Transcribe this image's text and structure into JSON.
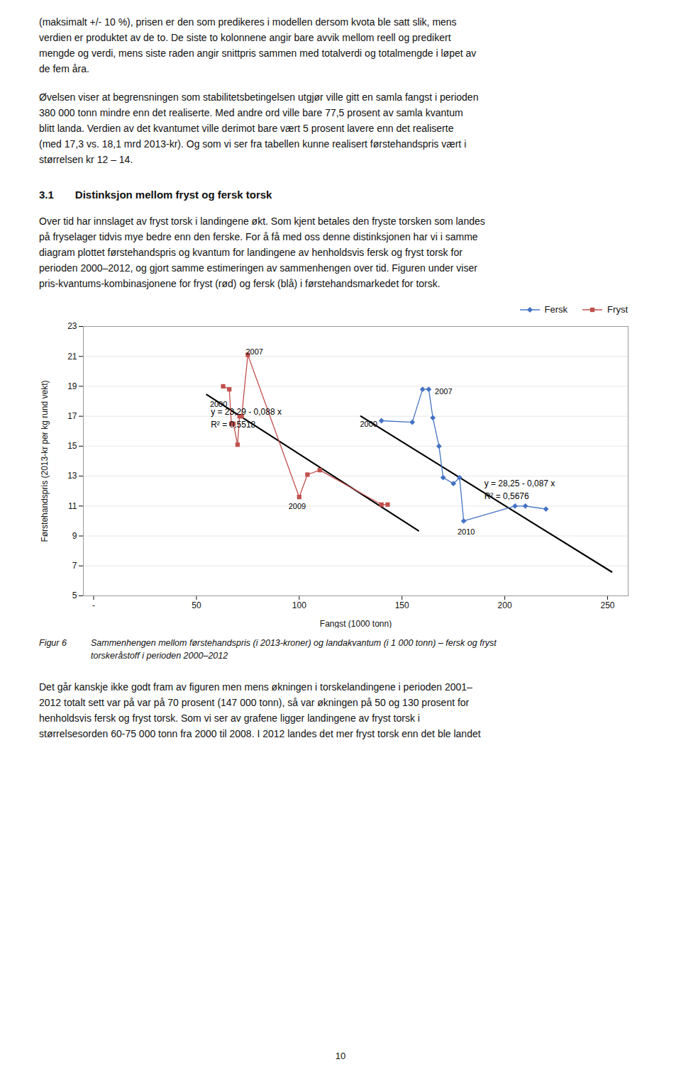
{
  "text_before": [
    [
      "(maksimalt +/- 10 %), prisen er den som predikeres i modellen dersom kvota ble satt slik, mens",
      "verdien er produktet av de to. De siste to kolonnene angir bare avvik mellom reell og predikert",
      "mengde og verdi, mens siste raden angir snittpris sammen med totalverdi og totalmengde i løpet av",
      "de fem åra."
    ],
    [
      "Øvelsen viser at begrensningen som stabilitetsbetingelsen utgjør ville gitt en samla fangst i perioden",
      "380 000 tonn mindre enn det realiserte. Med andre ord ville bare 77,5 prosent av samla kvantum",
      "blitt landa. Verdien av det kvantumet ville derimot bare vært 5 prosent lavere enn det realiserte",
      "(med 17,3 vs. 18,1 mrd 2013-kr). Og som vi ser fra tabellen kunne realisert førstehandspris vært i",
      "størrelsen kr 12 – 14."
    ]
  ],
  "section_number": "3.1",
  "section_title": "Distinksjon mellom fryst og fersk torsk",
  "text_section": [
    [
      "Over tid har innslaget av fryst torsk i landingene økt. Som kjent betales den fryste torsken som landes",
      "på fryselager tidvis mye bedre enn den ferske. For å få med oss denne distinksjonen har vi i samme",
      "diagram plottet førstehandspris og kvantum for landingene av henholdsvis fersk og fryst torsk for",
      "perioden 2000–2012, og gjort samme estimeringen av sammenhengen over tid. Figuren under viser",
      "pris-kvantums-kombinasjonene for fryst (rød) og fersk (blå) i førstehandsmarkedet for torsk."
    ]
  ],
  "caption_label": "Figur 6",
  "caption": [
    "Sammenhengen mellom førstehandspris (i 2013-kroner) og landakvantum (i 1 000 tonn) – fersk og fryst",
    "torskeråstoff i perioden 2000–2012"
  ],
  "text_after": [
    [
      "Det går kanskje ikke godt fram av figuren men mens økningen i torskelandingene i perioden 2001–",
      "2012 totalt sett var på var på 70 prosent (147 000 tonn), så var økningen på 50 og 130 prosent for",
      "henholdsvis fersk og fryst torsk. Som vi ser av grafene ligger landingene av fryst torsk i",
      "størrelsesorden 60-75 000 tonn fra 2000 til 2008. I 2012 landes det mer fryst torsk enn det ble landet"
    ]
  ],
  "page_number": "10",
  "chart_data": {
    "type": "line",
    "xlabel": "Fangst (1000 tonn)",
    "ylabel": "Førstehandspris (2013-kr per kg rund vekt)",
    "xlim": [
      -5,
      260
    ],
    "ylim": [
      5,
      23
    ],
    "xticks": [
      {
        "value": 0,
        "label": "-"
      },
      50,
      100,
      150,
      200,
      250
    ],
    "yticks": [
      5,
      7,
      9,
      11,
      13,
      15,
      17,
      19,
      21,
      23
    ],
    "grid": "y",
    "legend": "upper right",
    "series": [
      {
        "name": "Fersk",
        "color": "#4472c4",
        "marker": "diamond",
        "x": [
          140,
          155,
          160,
          163,
          165,
          168,
          170,
          175,
          178,
          180,
          205,
          210,
          220
        ],
        "values": [
          16.7,
          16.6,
          18.8,
          18.8,
          16.9,
          15.0,
          12.9,
          12.5,
          12.9,
          10.0,
          11.0,
          11.0,
          10.8
        ]
      },
      {
        "name": "Fryst",
        "color": "#c0504d",
        "marker": "square",
        "x": [
          63,
          66,
          67,
          68,
          70,
          71,
          72,
          75,
          100,
          104,
          110,
          140,
          143
        ],
        "values": [
          19.0,
          18.8,
          16.5,
          16.5,
          15.1,
          17.0,
          17.0,
          21.1,
          11.6,
          13.1,
          13.4,
          11.1,
          11.1
        ]
      }
    ],
    "trendlines": [
      {
        "x": [
          55,
          158
        ],
        "values": [
          18.45,
          9.35
        ],
        "color": "black"
      },
      {
        "x": [
          130,
          252
        ],
        "values": [
          17.0,
          6.6
        ],
        "color": "black"
      }
    ],
    "annotations": [
      {
        "text": "y = 23,29 - 0,088 x\nR² = 0,5518",
        "x": 57,
        "y": 17.7
      },
      {
        "text": "y = 28,25 - 0,087 x\nR² = 0,5676",
        "x": 190,
        "y": 12.9
      },
      {
        "text": "2000",
        "x": 65,
        "y": 18.2
      },
      {
        "text": "2007",
        "x": 74,
        "y": 21.15
      },
      {
        "text": "2009",
        "x": 99,
        "y": 11.35
      },
      {
        "text": "2000",
        "x": 138,
        "y": 16.55
      },
      {
        "text": "2007",
        "x": 166,
        "y": 18.5
      },
      {
        "text": "2010",
        "x": 177,
        "y": 9.65
      }
    ]
  }
}
